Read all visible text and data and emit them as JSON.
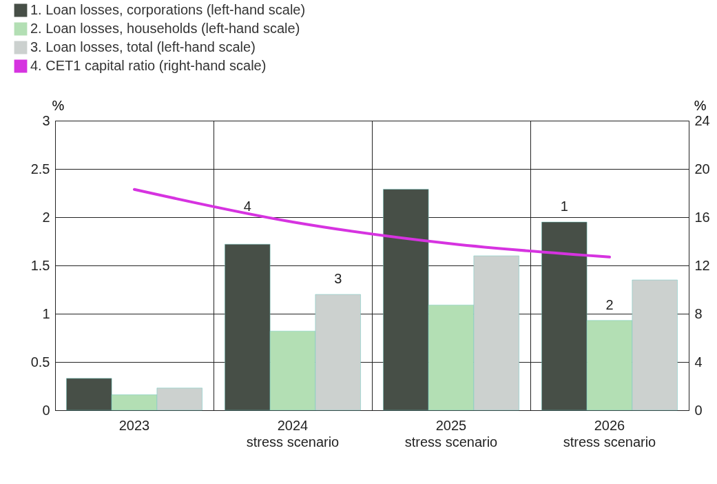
{
  "chart_data": {
    "type": "bar",
    "categories": [
      "2023",
      "2024\nstress scenario",
      "2025\nstress scenario",
      "2026\nstress scenario"
    ],
    "series": [
      {
        "name": "1. Loan losses, corporations (left-hand scale)",
        "color": "#474f47",
        "values": [
          0.33,
          1.72,
          2.29,
          1.95
        ]
      },
      {
        "name": "2. Loan losses, households (left-hand scale)",
        "color": "#b3dfb4",
        "values": [
          0.16,
          0.82,
          1.09,
          0.93
        ]
      },
      {
        "name": "3. Loan losses, total (left-hand scale)",
        "color": "#ccd1cf",
        "values": [
          0.23,
          1.2,
          1.6,
          1.35
        ]
      },
      {
        "name": "4. CET1 capital ratio (right-hand scale)",
        "color": "#d633e0",
        "type": "line",
        "axis": "y2",
        "values": [
          18.3,
          15.6,
          13.8,
          12.7
        ]
      }
    ],
    "ylabel": "%",
    "y2label": "%",
    "ylim": [
      0,
      3
    ],
    "yticks": [
      0,
      0.5,
      1.0,
      1.5,
      2.0,
      2.5,
      3.0
    ],
    "y2lim": [
      0,
      24
    ],
    "y2ticks": [
      0,
      4,
      8,
      12,
      16,
      20,
      24
    ],
    "annotations": [
      "1",
      "2",
      "3",
      "4"
    ],
    "grid": true,
    "legend": "top left"
  }
}
